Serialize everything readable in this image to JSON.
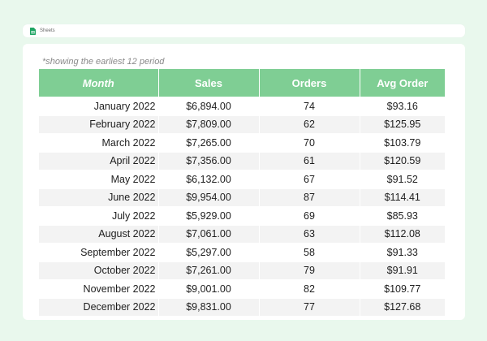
{
  "app": {
    "title": "Sheets",
    "icon": "sheets-icon",
    "accent": "#7fce94"
  },
  "note": "*showing the earliest 12 period",
  "table": {
    "headers": [
      "Month",
      "Sales",
      "Orders",
      "Avg Order"
    ],
    "rows": [
      {
        "month": "January 2022",
        "sales": "$6,894.00",
        "orders": "74",
        "avg": "$93.16"
      },
      {
        "month": "February 2022",
        "sales": "$7,809.00",
        "orders": "62",
        "avg": "$125.95"
      },
      {
        "month": "March 2022",
        "sales": "$7,265.00",
        "orders": "70",
        "avg": "$103.79"
      },
      {
        "month": "April 2022",
        "sales": "$7,356.00",
        "orders": "61",
        "avg": "$120.59"
      },
      {
        "month": "May 2022",
        "sales": "$6,132.00",
        "orders": "67",
        "avg": "$91.52"
      },
      {
        "month": "June 2022",
        "sales": "$9,954.00",
        "orders": "87",
        "avg": "$114.41"
      },
      {
        "month": "July 2022",
        "sales": "$5,929.00",
        "orders": "69",
        "avg": "$85.93"
      },
      {
        "month": "August 2022",
        "sales": "$7,061.00",
        "orders": "63",
        "avg": "$112.08"
      },
      {
        "month": "September 2022",
        "sales": "$5,297.00",
        "orders": "58",
        "avg": "$91.33"
      },
      {
        "month": "October 2022",
        "sales": "$7,261.00",
        "orders": "79",
        "avg": "$91.91"
      },
      {
        "month": "November 2022",
        "sales": "$9,001.00",
        "orders": "82",
        "avg": "$109.77"
      },
      {
        "month": "December 2022",
        "sales": "$9,831.00",
        "orders": "77",
        "avg": "$127.68"
      }
    ]
  }
}
